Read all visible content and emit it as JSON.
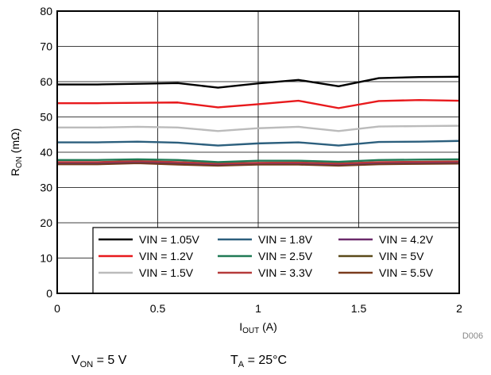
{
  "chart_data": {
    "type": "line",
    "xlabel_main": "I",
    "xlabel_sub": "OUT",
    "xlabel_unit": " (A)",
    "ylabel_main": "R",
    "ylabel_sub": "ON",
    "ylabel_unit": " (mΩ)",
    "xlim": [
      0,
      2
    ],
    "ylim": [
      0,
      80
    ],
    "x_ticks": [
      "0",
      "0.5",
      "1",
      "1.5",
      "2"
    ],
    "y_ticks": [
      "0",
      "10",
      "20",
      "30",
      "40",
      "50",
      "60",
      "70",
      "80"
    ],
    "grid": true,
    "legend_position": "bottom-right",
    "x": [
      0,
      0.2,
      0.4,
      0.6,
      0.8,
      1.0,
      1.2,
      1.4,
      1.6,
      1.8,
      2.0
    ],
    "series": [
      {
        "name": "VIN = 1.05V",
        "color": "#000000",
        "values": [
          59.2,
          59.2,
          59.4,
          59.6,
          58.3,
          59.5,
          60.5,
          58.7,
          61.0,
          61.3,
          61.4
        ]
      },
      {
        "name": "VIN = 1.2V",
        "color": "#e8191c",
        "values": [
          53.9,
          53.9,
          54.0,
          54.1,
          52.7,
          53.6,
          54.6,
          52.5,
          54.5,
          54.8,
          54.6
        ]
      },
      {
        "name": "VIN = 1.5V",
        "color": "#bbbbbb",
        "values": [
          47.0,
          47.0,
          47.2,
          47.0,
          46.0,
          46.8,
          47.2,
          46.0,
          47.3,
          47.4,
          47.5
        ]
      },
      {
        "name": "VIN = 1.8V",
        "color": "#2c5f7d",
        "values": [
          42.8,
          42.8,
          43.0,
          42.7,
          41.9,
          42.5,
          42.8,
          41.9,
          42.9,
          43.0,
          43.2
        ]
      },
      {
        "name": "VIN = 2.5V",
        "color": "#1f7a55",
        "values": [
          37.8,
          37.8,
          38.0,
          37.8,
          37.2,
          37.6,
          37.6,
          37.3,
          37.8,
          37.9,
          38.0
        ]
      },
      {
        "name": "VIN = 3.3V",
        "color": "#b53a3a",
        "values": [
          37.2,
          37.2,
          37.5,
          37.2,
          36.8,
          37.0,
          37.1,
          36.8,
          37.2,
          37.3,
          37.4
        ]
      },
      {
        "name": "VIN = 4.2V",
        "color": "#6b2a6b",
        "values": [
          37.0,
          37.0,
          37.3,
          37.0,
          36.6,
          36.9,
          36.9,
          36.6,
          37.0,
          37.1,
          37.2
        ]
      },
      {
        "name": "VIN = 5V",
        "color": "#5a4a1a",
        "values": [
          36.9,
          36.9,
          37.2,
          36.9,
          36.5,
          36.8,
          36.8,
          36.5,
          36.9,
          37.0,
          37.1
        ]
      },
      {
        "name": "VIN = 5.5V",
        "color": "#7a3b1d",
        "values": [
          36.6,
          36.6,
          36.9,
          36.5,
          36.2,
          36.5,
          36.5,
          36.2,
          36.6,
          36.7,
          36.8
        ]
      }
    ],
    "annotation": "D006"
  },
  "conditions": {
    "von_main": "V",
    "von_sub": "ON",
    "von_rest": " = 5 V",
    "ta_main": "T",
    "ta_sub": "A",
    "ta_rest": " = 25°C"
  }
}
